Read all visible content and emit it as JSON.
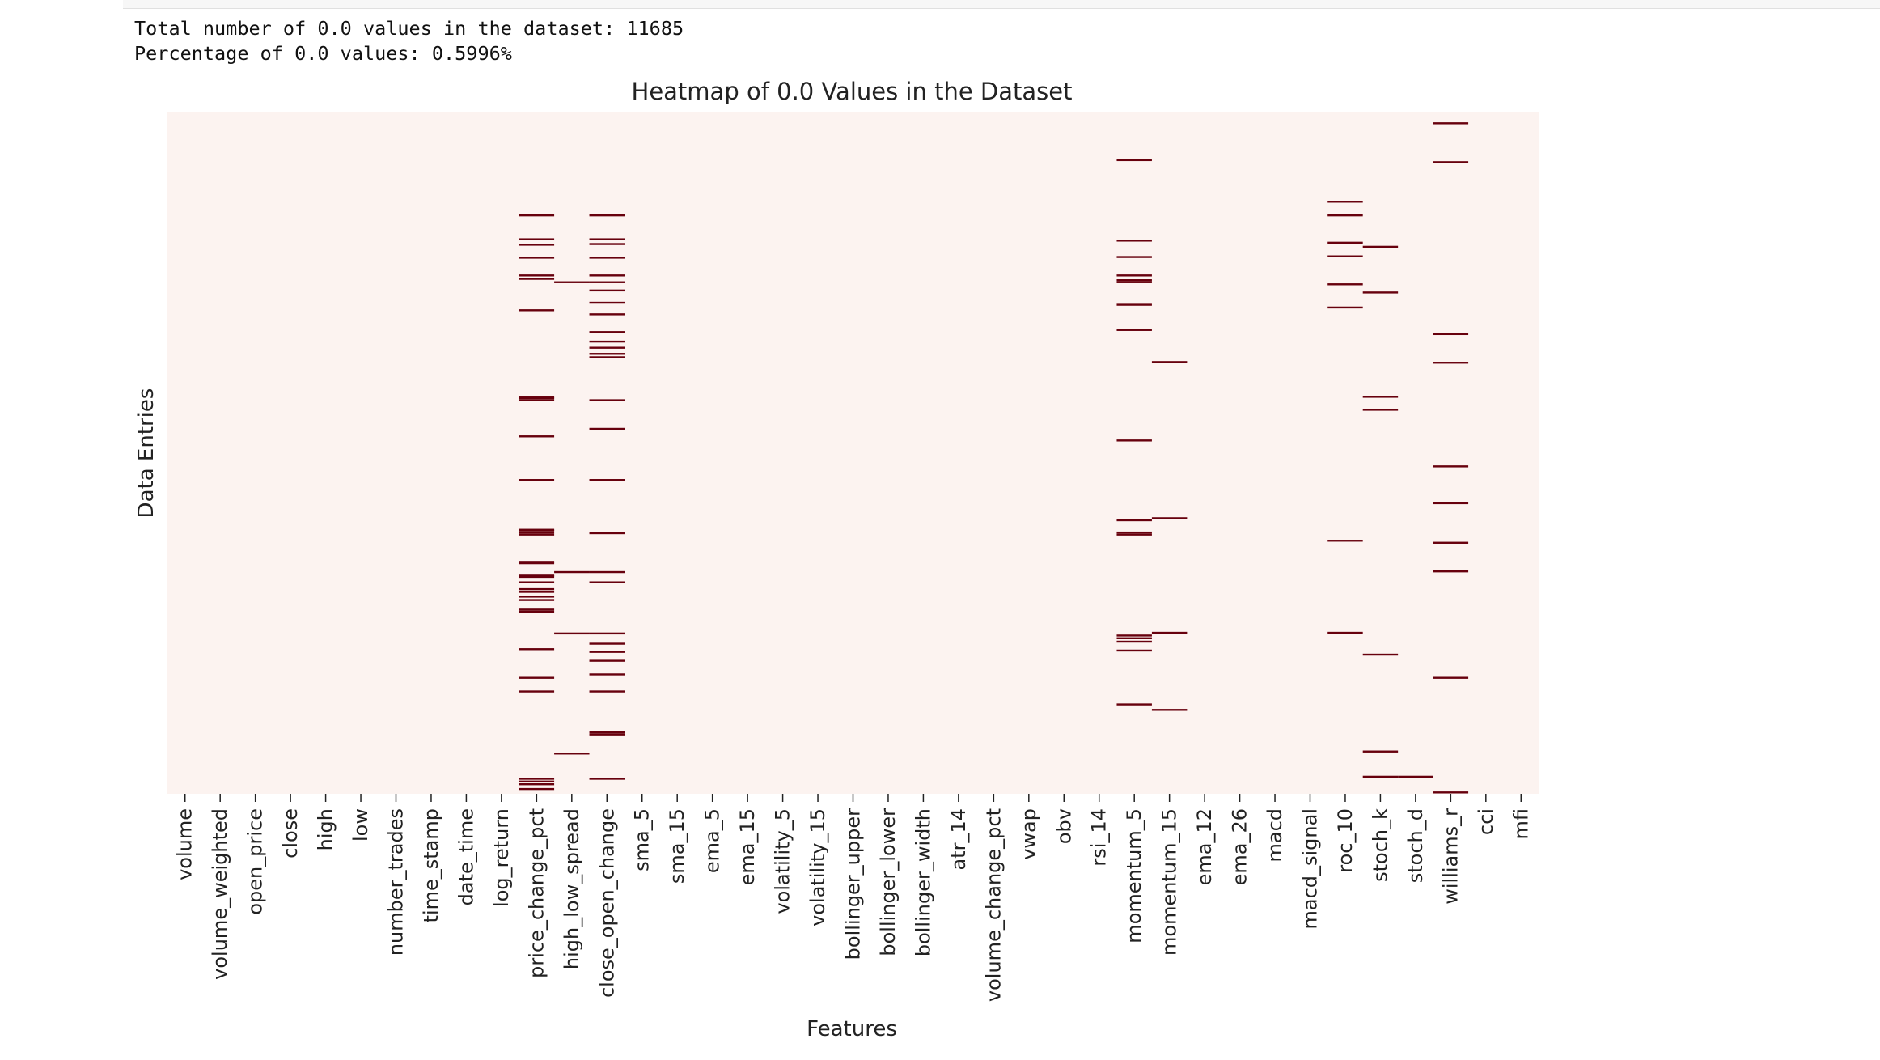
{
  "output": {
    "total_line": "Total number of 0.0 values in the dataset: 11685",
    "percent_line": "Percentage of 0.0 values: 0.5996%"
  },
  "chart_data": {
    "type": "heatmap",
    "title": "Heatmap of 0.0 Values in the Dataset",
    "xlabel": "Features",
    "ylabel": "Data Entries",
    "colorbar": false,
    "colors": {
      "background": "#fcf3f0",
      "mark": "#67000d"
    },
    "features": [
      "volume",
      "volume_weighted",
      "open_price",
      "close",
      "high",
      "low",
      "number_trades",
      "time_stamp",
      "date_time",
      "log_return",
      "price_change_pct",
      "high_low_spread",
      "close_open_change",
      "sma_5",
      "sma_15",
      "ema_5",
      "ema_15",
      "volatility_5",
      "volatility_15",
      "bollinger_upper",
      "bollinger_lower",
      "bollinger_width",
      "atr_14",
      "volume_change_pct",
      "vwap",
      "obv",
      "rsi_14",
      "momentum_5",
      "momentum_15",
      "ema_12",
      "ema_26",
      "macd",
      "macd_signal",
      "roc_10",
      "stoch_k",
      "stoch_d",
      "williams_r",
      "cci",
      "mfi"
    ],
    "zero_rows_fraction": {
      "price_change_pct": [
        0.152,
        0.187,
        0.195,
        0.214,
        0.24,
        0.245,
        0.291,
        0.419,
        0.42,
        0.423,
        0.476,
        0.54,
        0.613,
        0.614,
        0.617,
        0.62,
        0.66,
        0.662,
        0.679,
        0.68,
        0.682,
        0.69,
        0.7,
        0.704,
        0.711,
        0.716,
        0.73,
        0.733,
        0.788,
        0.83,
        0.85,
        0.978,
        0.982,
        0.986,
        0.993
      ],
      "high_low_spread": [
        0.25,
        0.675,
        0.765,
        0.941
      ],
      "close_open_change": [
        0.152,
        0.187,
        0.194,
        0.214,
        0.24,
        0.25,
        0.262,
        0.28,
        0.297,
        0.323,
        0.337,
        0.346,
        0.355,
        0.36,
        0.423,
        0.465,
        0.54,
        0.618,
        0.675,
        0.69,
        0.765,
        0.78,
        0.792,
        0.805,
        0.825,
        0.85,
        0.91,
        0.913,
        0.978
      ],
      "momentum_5": [
        0.071,
        0.189,
        0.213,
        0.24,
        0.247,
        0.25,
        0.283,
        0.32,
        0.482,
        0.599,
        0.617,
        0.62,
        0.768,
        0.772,
        0.777,
        0.79,
        0.869
      ],
      "momentum_15": [
        0.367,
        0.596,
        0.764,
        0.877
      ],
      "roc_10": [
        0.132,
        0.152,
        0.192,
        0.212,
        0.253,
        0.287,
        0.629,
        0.764
      ],
      "stoch_k": [
        0.198,
        0.265,
        0.418,
        0.437,
        0.796,
        0.938,
        0.975
      ],
      "stoch_d": [
        0.975
      ],
      "williams_r": [
        0.017,
        0.074,
        0.326,
        0.368,
        0.52,
        0.574,
        0.632,
        0.674,
        0.83,
        0.998
      ]
    }
  }
}
